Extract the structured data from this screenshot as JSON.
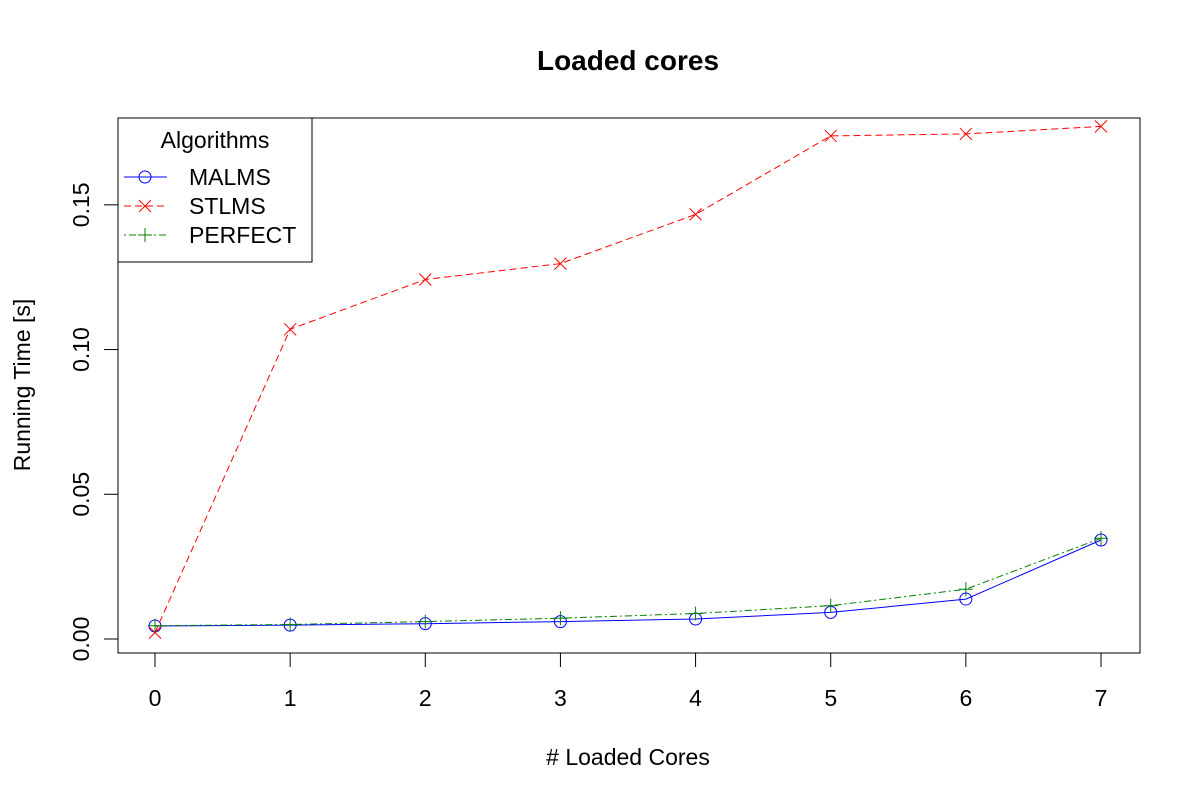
{
  "chart_data": {
    "type": "line",
    "title": "Loaded cores",
    "xlabel": "# Loaded Cores",
    "ylabel": "Running Time [s]",
    "x": [
      0,
      1,
      2,
      3,
      4,
      5,
      6,
      7
    ],
    "xlim": [
      0,
      7
    ],
    "ylim": [
      0.0,
      0.18
    ],
    "xticks": [
      "0",
      "1",
      "2",
      "3",
      "4",
      "5",
      "6",
      "7"
    ],
    "yticks": [
      {
        "value": 0.0,
        "label": "0.00"
      },
      {
        "value": 0.05,
        "label": "0.05"
      },
      {
        "value": 0.1,
        "label": "0.10"
      },
      {
        "value": 0.15,
        "label": "0.15"
      }
    ],
    "grid": false,
    "legend": {
      "title": "Algorithms",
      "position": "top-left"
    },
    "series": [
      {
        "name": "MALMS",
        "marker": "circle",
        "line_style": "solid",
        "color": "#0000ff",
        "values": [
          0.0045,
          0.0048,
          0.0053,
          0.006,
          0.0069,
          0.0092,
          0.0138,
          0.0342
        ]
      },
      {
        "name": "STLMS",
        "marker": "x",
        "line_style": "dashed",
        "color": "#ff0000",
        "values": [
          0.0022,
          0.107,
          0.1242,
          0.1297,
          0.1467,
          0.1738,
          0.1745,
          0.1771
        ]
      },
      {
        "name": "PERFECT",
        "marker": "plus",
        "line_style": "dotdash",
        "color": "#008000",
        "values": [
          0.0046,
          0.005,
          0.006,
          0.0072,
          0.0088,
          0.0115,
          0.0172,
          0.0348
        ]
      }
    ]
  }
}
